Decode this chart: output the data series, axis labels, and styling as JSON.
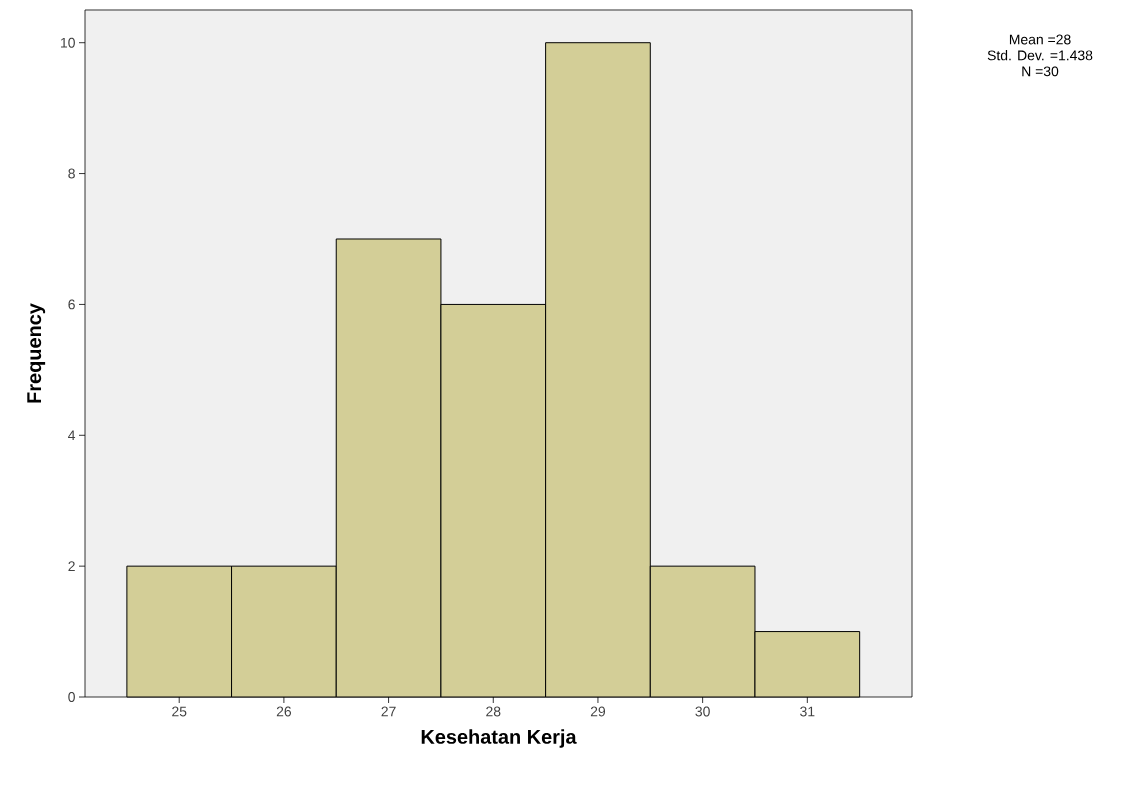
{
  "chart_data": {
    "type": "histogram",
    "xlabel": "Kesehatan Kerja",
    "ylabel": "Frequency",
    "bins": [
      24.5,
      25.5,
      26.5,
      27.5,
      28.5,
      29.5,
      30.5,
      31.5
    ],
    "values": [
      2,
      2,
      7,
      6,
      10,
      2,
      1
    ],
    "color": "#d3ce97",
    "xlim": [
      24.1,
      32.0
    ],
    "ylim": [
      0,
      10.5
    ],
    "xticks": [
      25,
      26,
      27,
      28,
      29,
      30,
      31
    ],
    "yticks": [
      0,
      2,
      4,
      6,
      8,
      10
    ],
    "grid": false,
    "annotations": [
      "Mean =28",
      "Std. Dev. =1.438",
      "N =30"
    ]
  }
}
